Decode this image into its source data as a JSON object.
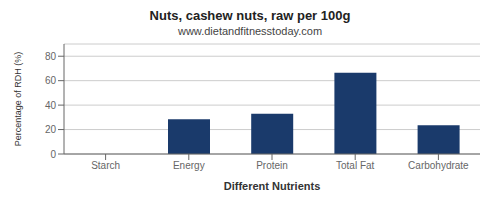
{
  "chart_data": {
    "type": "bar",
    "title": "Nuts, cashew nuts, raw per 100g",
    "subtitle": "www.dietandfitnesstoday.com",
    "xlabel": "Different Nutrients",
    "ylabel": "Percentage of RDH (%)",
    "categories": [
      "Starch",
      "Energy",
      "Protein",
      "Total Fat",
      "Carbohydrate"
    ],
    "values": [
      0,
      28.5,
      33,
      66.5,
      23.5
    ],
    "color": "#1a3a6b",
    "ylim": [
      0,
      90
    ],
    "yticks": [
      0,
      20,
      40,
      60,
      80
    ],
    "grid": true
  }
}
